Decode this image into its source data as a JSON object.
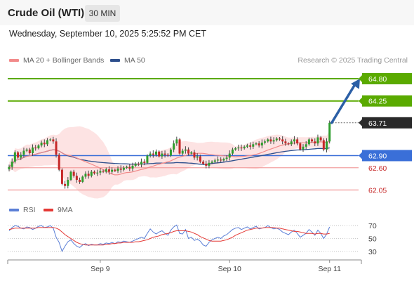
{
  "header": {
    "title": "Crude Oil (WTI)",
    "timeframe": "30 MIN",
    "datetime": "Wednesday, September 10, 2025 5:25:52 PM CET"
  },
  "credit": "Research © 2025 Trading Central",
  "colors": {
    "ma20": "#f28a8a",
    "ma50": "#2d4f8c",
    "band_fill": "#fde3e3",
    "candle_up": "#2e9e2e",
    "candle_down": "#c62828",
    "resistance": "#5aaa00",
    "support_blue": "#3a6fd8",
    "support_red": "#f2a0a0",
    "arrow": "#2b5fa6",
    "rsi": "#5b7fd6",
    "rsi_ma": "#e53935"
  },
  "chart_data": [
    {
      "type": "candlestick",
      "legend": [
        {
          "name": "MA 20 + Bollinger Bands",
          "color": "#f28a8a"
        },
        {
          "name": "MA 50",
          "color": "#2d4f8c"
        }
      ],
      "x_ticks": [
        {
          "label": "Sep 9",
          "index": 31
        },
        {
          "label": "Sep 10",
          "index": 75
        },
        {
          "label": "Sep 11",
          "index": 109
        }
      ],
      "ylim": [
        61.78,
        65.13
      ],
      "levels": [
        {
          "value": 64.8,
          "label": "64.80",
          "style": "resistance"
        },
        {
          "value": 64.25,
          "label": "64.25",
          "style": "resistance"
        },
        {
          "value": 63.71,
          "label": "63.71",
          "style": "current"
        },
        {
          "value": 62.9,
          "label": "62.90",
          "style": "support_blue"
        },
        {
          "value": 62.6,
          "label": "62.60",
          "style": "support_red"
        },
        {
          "value": 62.05,
          "label": "62.05",
          "style": "support_red"
        }
      ],
      "arrow": {
        "from": 63.71,
        "to": 64.8
      },
      "close": [
        62.62,
        62.75,
        62.98,
        62.85,
        62.92,
        63.02,
        63.05,
        62.96,
        63.1,
        63.08,
        63.15,
        63.22,
        63.18,
        63.28,
        63.3,
        63.25,
        62.92,
        62.55,
        62.2,
        62.15,
        62.3,
        62.5,
        62.4,
        62.3,
        62.25,
        62.38,
        62.45,
        62.4,
        62.5,
        62.46,
        62.48,
        62.52,
        62.5,
        62.56,
        62.5,
        62.55,
        62.52,
        62.58,
        62.55,
        62.6,
        62.62,
        62.58,
        62.65,
        62.7,
        62.68,
        62.75,
        62.72,
        62.9,
        62.95,
        62.92,
        63.0,
        62.88,
        62.95,
        62.92,
        62.9,
        63.05,
        63.2,
        63.3,
        62.95,
        63.02,
        63.05,
        62.95,
        62.98,
        62.85,
        62.88,
        62.75,
        62.7,
        62.65,
        62.72,
        62.75,
        62.78,
        62.8,
        62.78,
        62.82,
        62.85,
        62.95,
        63.05,
        63.08,
        63.1,
        63.08,
        63.12,
        63.15,
        63.12,
        63.18,
        63.2,
        63.15,
        63.22,
        63.25,
        63.3,
        63.25,
        63.28,
        63.32,
        63.3,
        63.25,
        63.2,
        63.18,
        63.25,
        63.3,
        63.2,
        63.05,
        63.12,
        63.18,
        63.3,
        63.25,
        63.2,
        63.35,
        63.28,
        63.05,
        63.25,
        63.71
      ]
    },
    {
      "type": "line",
      "legend": [
        {
          "name": "RSI",
          "color": "#5b7fd6"
        },
        {
          "name": "9MA",
          "color": "#e53935"
        }
      ],
      "y_ticks": [
        70,
        50,
        30
      ],
      "ylim": [
        20,
        80
      ],
      "series": [
        {
          "name": "RSI",
          "values": [
            62,
            67,
            70,
            69,
            66,
            65,
            68,
            67,
            64,
            66,
            69,
            70,
            67,
            68,
            70,
            66,
            52,
            44,
            30,
            38,
            45,
            48,
            42,
            38,
            36,
            40,
            42,
            39,
            41,
            40,
            40,
            42,
            41,
            43,
            42,
            44,
            42,
            45,
            44,
            46,
            45,
            44,
            46,
            48,
            50,
            52,
            50,
            58,
            65,
            60,
            57,
            60,
            62,
            58,
            55,
            63,
            68,
            71,
            58,
            57,
            64,
            50,
            52,
            47,
            49,
            46,
            40,
            38,
            44,
            48,
            50,
            52,
            50,
            54,
            56,
            60,
            64,
            66,
            67,
            64,
            66,
            68,
            65,
            67,
            69,
            65,
            66,
            67,
            70,
            67,
            65,
            66,
            64,
            60,
            58,
            56,
            60,
            63,
            58,
            52,
            55,
            58,
            64,
            60,
            55,
            63,
            58,
            50,
            57,
            68
          ]
        },
        {
          "name": "9MA",
          "values": [
            64,
            65,
            66,
            66,
            66,
            66,
            66,
            66,
            66,
            66,
            67,
            67,
            67,
            67,
            67,
            67,
            66,
            64,
            60,
            56,
            53,
            50,
            47,
            44,
            42,
            41,
            40,
            40,
            40,
            40,
            40,
            40,
            40,
            41,
            41,
            42,
            42,
            43,
            43,
            44,
            44,
            44,
            44,
            45,
            45,
            46,
            47,
            48,
            50,
            52,
            53,
            54,
            56,
            57,
            58,
            59,
            61,
            62,
            62,
            62,
            62,
            61,
            60,
            58,
            56,
            53,
            51,
            49,
            47,
            46,
            46,
            46,
            46,
            47,
            48,
            50,
            52,
            55,
            57,
            59,
            61,
            63,
            64,
            65,
            66,
            66,
            66,
            67,
            67,
            67,
            67,
            66,
            66,
            65,
            64,
            63,
            62,
            61,
            61,
            60,
            59,
            58,
            58,
            58,
            57,
            58,
            58,
            57,
            57,
            58
          ]
        }
      ]
    }
  ]
}
